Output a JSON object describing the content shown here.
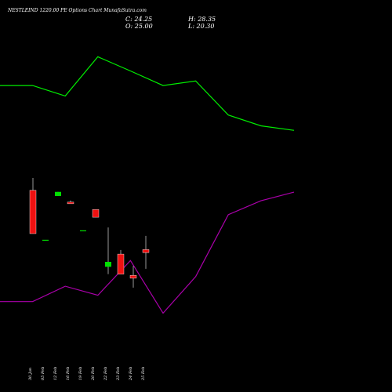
{
  "header": {
    "title": "NESTLEIND 1220.00 PE Options Chart MunafaSutra.com",
    "close": "C: 24.25",
    "high": "H: 28.35",
    "open": "O: 25.00",
    "low": "L: 20.30"
  },
  "colors": {
    "background": "#000000",
    "bullish": "#00e000",
    "bearish": "#ee1111",
    "upper_band": "#00ee00",
    "lower_band": "#aa00aa",
    "text": "#ffffff"
  },
  "chart_data": {
    "type": "candlestick",
    "categories": [
      "30 Jan",
      "05 Feb",
      "12 Feb",
      "16 Feb",
      "19 Feb",
      "20 Feb",
      "22 Feb",
      "23 Feb",
      "24 Feb",
      "25 Feb"
    ],
    "candles": [
      {
        "date": "30 Jan",
        "open": 39.5,
        "high": 42.5,
        "low": 28.9,
        "close": 28.9
      },
      {
        "date": "05 Feb",
        "open": 27.4,
        "high": 27.4,
        "low": 27.4,
        "close": 27.4
      },
      {
        "date": "12 Feb",
        "open": 38.1,
        "high": 39.1,
        "low": 38.1,
        "close": 39.1
      },
      {
        "date": "16 Feb",
        "open": 36.6,
        "high": 37.0,
        "low": 36.2,
        "close": 36.2
      },
      {
        "date": "19 Feb",
        "open": 29.7,
        "high": 29.7,
        "low": 29.7,
        "close": 29.7
      },
      {
        "date": "20 Feb",
        "open": 34.8,
        "high": 34.8,
        "low": 32.9,
        "close": 32.9
      },
      {
        "date": "22 Feb",
        "open": 20.8,
        "high": 30.4,
        "low": 19.0,
        "close": 22.0
      },
      {
        "date": "23 Feb",
        "open": 23.9,
        "high": 24.9,
        "low": 19.0,
        "close": 19.0
      },
      {
        "date": "24 Feb",
        "open": 18.7,
        "high": 21.0,
        "low": 15.7,
        "close": 18.0
      },
      {
        "date": "25 Feb",
        "open": 25.0,
        "high": 28.35,
        "low": 20.3,
        "close": 24.25
      }
    ],
    "bands": {
      "x_positions": [
        0,
        1,
        2,
        3,
        4,
        5,
        6,
        7,
        8,
        9
      ],
      "upper": [
        131.5,
        131.5,
        128.7,
        139.2,
        135.4,
        131.5,
        132.7,
        123.6,
        120.7,
        119.5
      ],
      "lower": [
        73.6,
        73.6,
        77.7,
        75.3,
        84.6,
        70.5,
        80.3,
        96.9,
        100.6,
        102.9
      ]
    }
  }
}
